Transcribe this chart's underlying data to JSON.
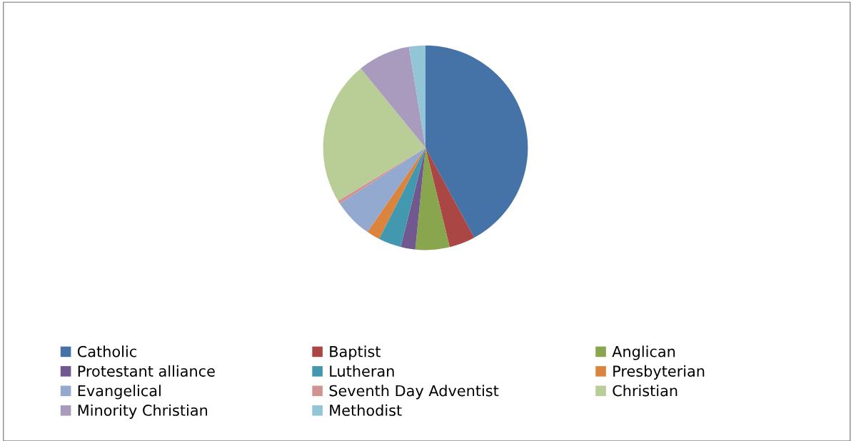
{
  "chart_data": {
    "type": "pie",
    "categories": [
      "Catholic",
      "Baptist",
      "Anglican",
      "Protestant alliance",
      "Lutheran",
      "Presbyterian",
      "Evangelical",
      "Seventh Day Adventist",
      "Christian",
      "Minority Christian",
      "Methodist"
    ],
    "values": [
      42.1,
      4.1,
      5.4,
      2.3,
      3.6,
      2.1,
      6.2,
      0.5,
      22.8,
      8.3,
      2.6
    ],
    "colors": [
      "#4572a7",
      "#aa4643",
      "#89a54e",
      "#71588f",
      "#4198af",
      "#db843d",
      "#93a9cf",
      "#d19392",
      "#b9cd96",
      "#a99bbd",
      "#92c5d6"
    ],
    "legend": "bottom"
  }
}
